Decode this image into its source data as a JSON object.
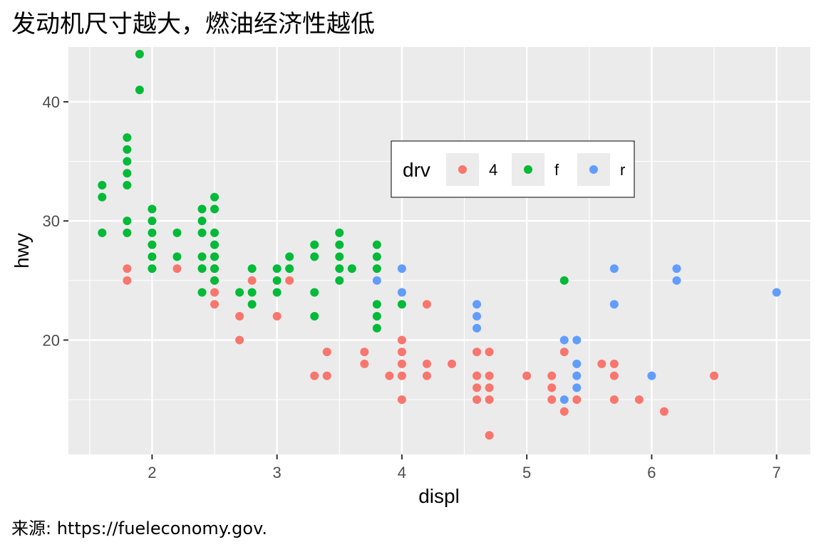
{
  "title": "发动机尺寸越大，燃油经济性越低",
  "caption": "来源: https://fueleconomy.gov.",
  "chart_data": {
    "type": "scatter",
    "title": "发动机尺寸越大，燃油经济性越低",
    "xlabel": "displ",
    "ylabel": "hwy",
    "xlim": [
      1.33,
      7.27
    ],
    "ylim": [
      10.4,
      44.6
    ],
    "x_ticks": [
      "2",
      "3",
      "4",
      "5",
      "6",
      "7"
    ],
    "y_ticks": [
      "20",
      "30",
      "40"
    ],
    "grid": true,
    "legend": {
      "title": "drv",
      "position": "inside-top-center",
      "entries": [
        "4",
        "f",
        "r"
      ]
    },
    "series": [
      {
        "name": "4",
        "color": "#F8766D",
        "points": [
          [
            1.8,
            26
          ],
          [
            1.8,
            25
          ],
          [
            2.2,
            26
          ],
          [
            2.5,
            27
          ],
          [
            2.5,
            26
          ],
          [
            2.5,
            25
          ],
          [
            2.5,
            24
          ],
          [
            2.5,
            23
          ],
          [
            2.7,
            22
          ],
          [
            2.7,
            20
          ],
          [
            2.8,
            25
          ],
          [
            3.0,
            22
          ],
          [
            3.1,
            25
          ],
          [
            3.3,
            17
          ],
          [
            3.4,
            19
          ],
          [
            3.4,
            17
          ],
          [
            3.7,
            19
          ],
          [
            3.7,
            18
          ],
          [
            3.9,
            17
          ],
          [
            4.0,
            20
          ],
          [
            4.0,
            19
          ],
          [
            4.0,
            18
          ],
          [
            4.0,
            17
          ],
          [
            4.0,
            15
          ],
          [
            4.2,
            23
          ],
          [
            4.2,
            18
          ],
          [
            4.2,
            17
          ],
          [
            4.4,
            18
          ],
          [
            4.6,
            19
          ],
          [
            4.6,
            17
          ],
          [
            4.6,
            16
          ],
          [
            4.6,
            15
          ],
          [
            4.7,
            19
          ],
          [
            4.7,
            17
          ],
          [
            4.7,
            16
          ],
          [
            4.7,
            15
          ],
          [
            4.7,
            12
          ],
          [
            5.0,
            17
          ],
          [
            5.2,
            17
          ],
          [
            5.2,
            16
          ],
          [
            5.2,
            15
          ],
          [
            5.3,
            19
          ],
          [
            5.3,
            14
          ],
          [
            5.4,
            15
          ],
          [
            5.6,
            18
          ],
          [
            5.7,
            18
          ],
          [
            5.7,
            17
          ],
          [
            5.7,
            15
          ],
          [
            5.9,
            15
          ],
          [
            6.1,
            14
          ],
          [
            6.5,
            17
          ]
        ]
      },
      {
        "name": "f",
        "color": "#00BA38",
        "points": [
          [
            1.6,
            33
          ],
          [
            1.6,
            32
          ],
          [
            1.6,
            29
          ],
          [
            1.8,
            37
          ],
          [
            1.8,
            36
          ],
          [
            1.8,
            35
          ],
          [
            1.8,
            34
          ],
          [
            1.8,
            33
          ],
          [
            1.8,
            30
          ],
          [
            1.8,
            29
          ],
          [
            1.9,
            44
          ],
          [
            1.9,
            41
          ],
          [
            2.0,
            31
          ],
          [
            2.0,
            30
          ],
          [
            2.0,
            29
          ],
          [
            2.0,
            28
          ],
          [
            2.0,
            27
          ],
          [
            2.0,
            26
          ],
          [
            2.2,
            29
          ],
          [
            2.2,
            27
          ],
          [
            2.4,
            31
          ],
          [
            2.4,
            30
          ],
          [
            2.4,
            29
          ],
          [
            2.4,
            27
          ],
          [
            2.4,
            26
          ],
          [
            2.4,
            24
          ],
          [
            2.5,
            32
          ],
          [
            2.5,
            31
          ],
          [
            2.5,
            29
          ],
          [
            2.5,
            28
          ],
          [
            2.5,
            27
          ],
          [
            2.5,
            26
          ],
          [
            2.5,
            25
          ],
          [
            2.7,
            24
          ],
          [
            2.8,
            26
          ],
          [
            2.8,
            24
          ],
          [
            2.8,
            23
          ],
          [
            3.0,
            26
          ],
          [
            3.0,
            25
          ],
          [
            3.0,
            24
          ],
          [
            3.1,
            27
          ],
          [
            3.1,
            26
          ],
          [
            3.3,
            28
          ],
          [
            3.3,
            27
          ],
          [
            3.3,
            24
          ],
          [
            3.3,
            22
          ],
          [
            3.5,
            29
          ],
          [
            3.5,
            28
          ],
          [
            3.5,
            27
          ],
          [
            3.5,
            26
          ],
          [
            3.5,
            25
          ],
          [
            3.6,
            26
          ],
          [
            3.8,
            28
          ],
          [
            3.8,
            27
          ],
          [
            3.8,
            26
          ],
          [
            3.8,
            23
          ],
          [
            3.8,
            22
          ],
          [
            3.8,
            21
          ],
          [
            4.0,
            23
          ],
          [
            5.3,
            25
          ]
        ]
      },
      {
        "name": "r",
        "color": "#619CFF",
        "points": [
          [
            3.8,
            25
          ],
          [
            4.0,
            26
          ],
          [
            4.0,
            24
          ],
          [
            4.6,
            23
          ],
          [
            4.6,
            22
          ],
          [
            4.6,
            21
          ],
          [
            5.3,
            20
          ],
          [
            5.3,
            15
          ],
          [
            5.4,
            20
          ],
          [
            5.4,
            18
          ],
          [
            5.4,
            17
          ],
          [
            5.4,
            16
          ],
          [
            5.7,
            26
          ],
          [
            5.7,
            23
          ],
          [
            6.0,
            17
          ],
          [
            6.2,
            26
          ],
          [
            6.2,
            25
          ],
          [
            7.0,
            24
          ]
        ]
      }
    ]
  }
}
